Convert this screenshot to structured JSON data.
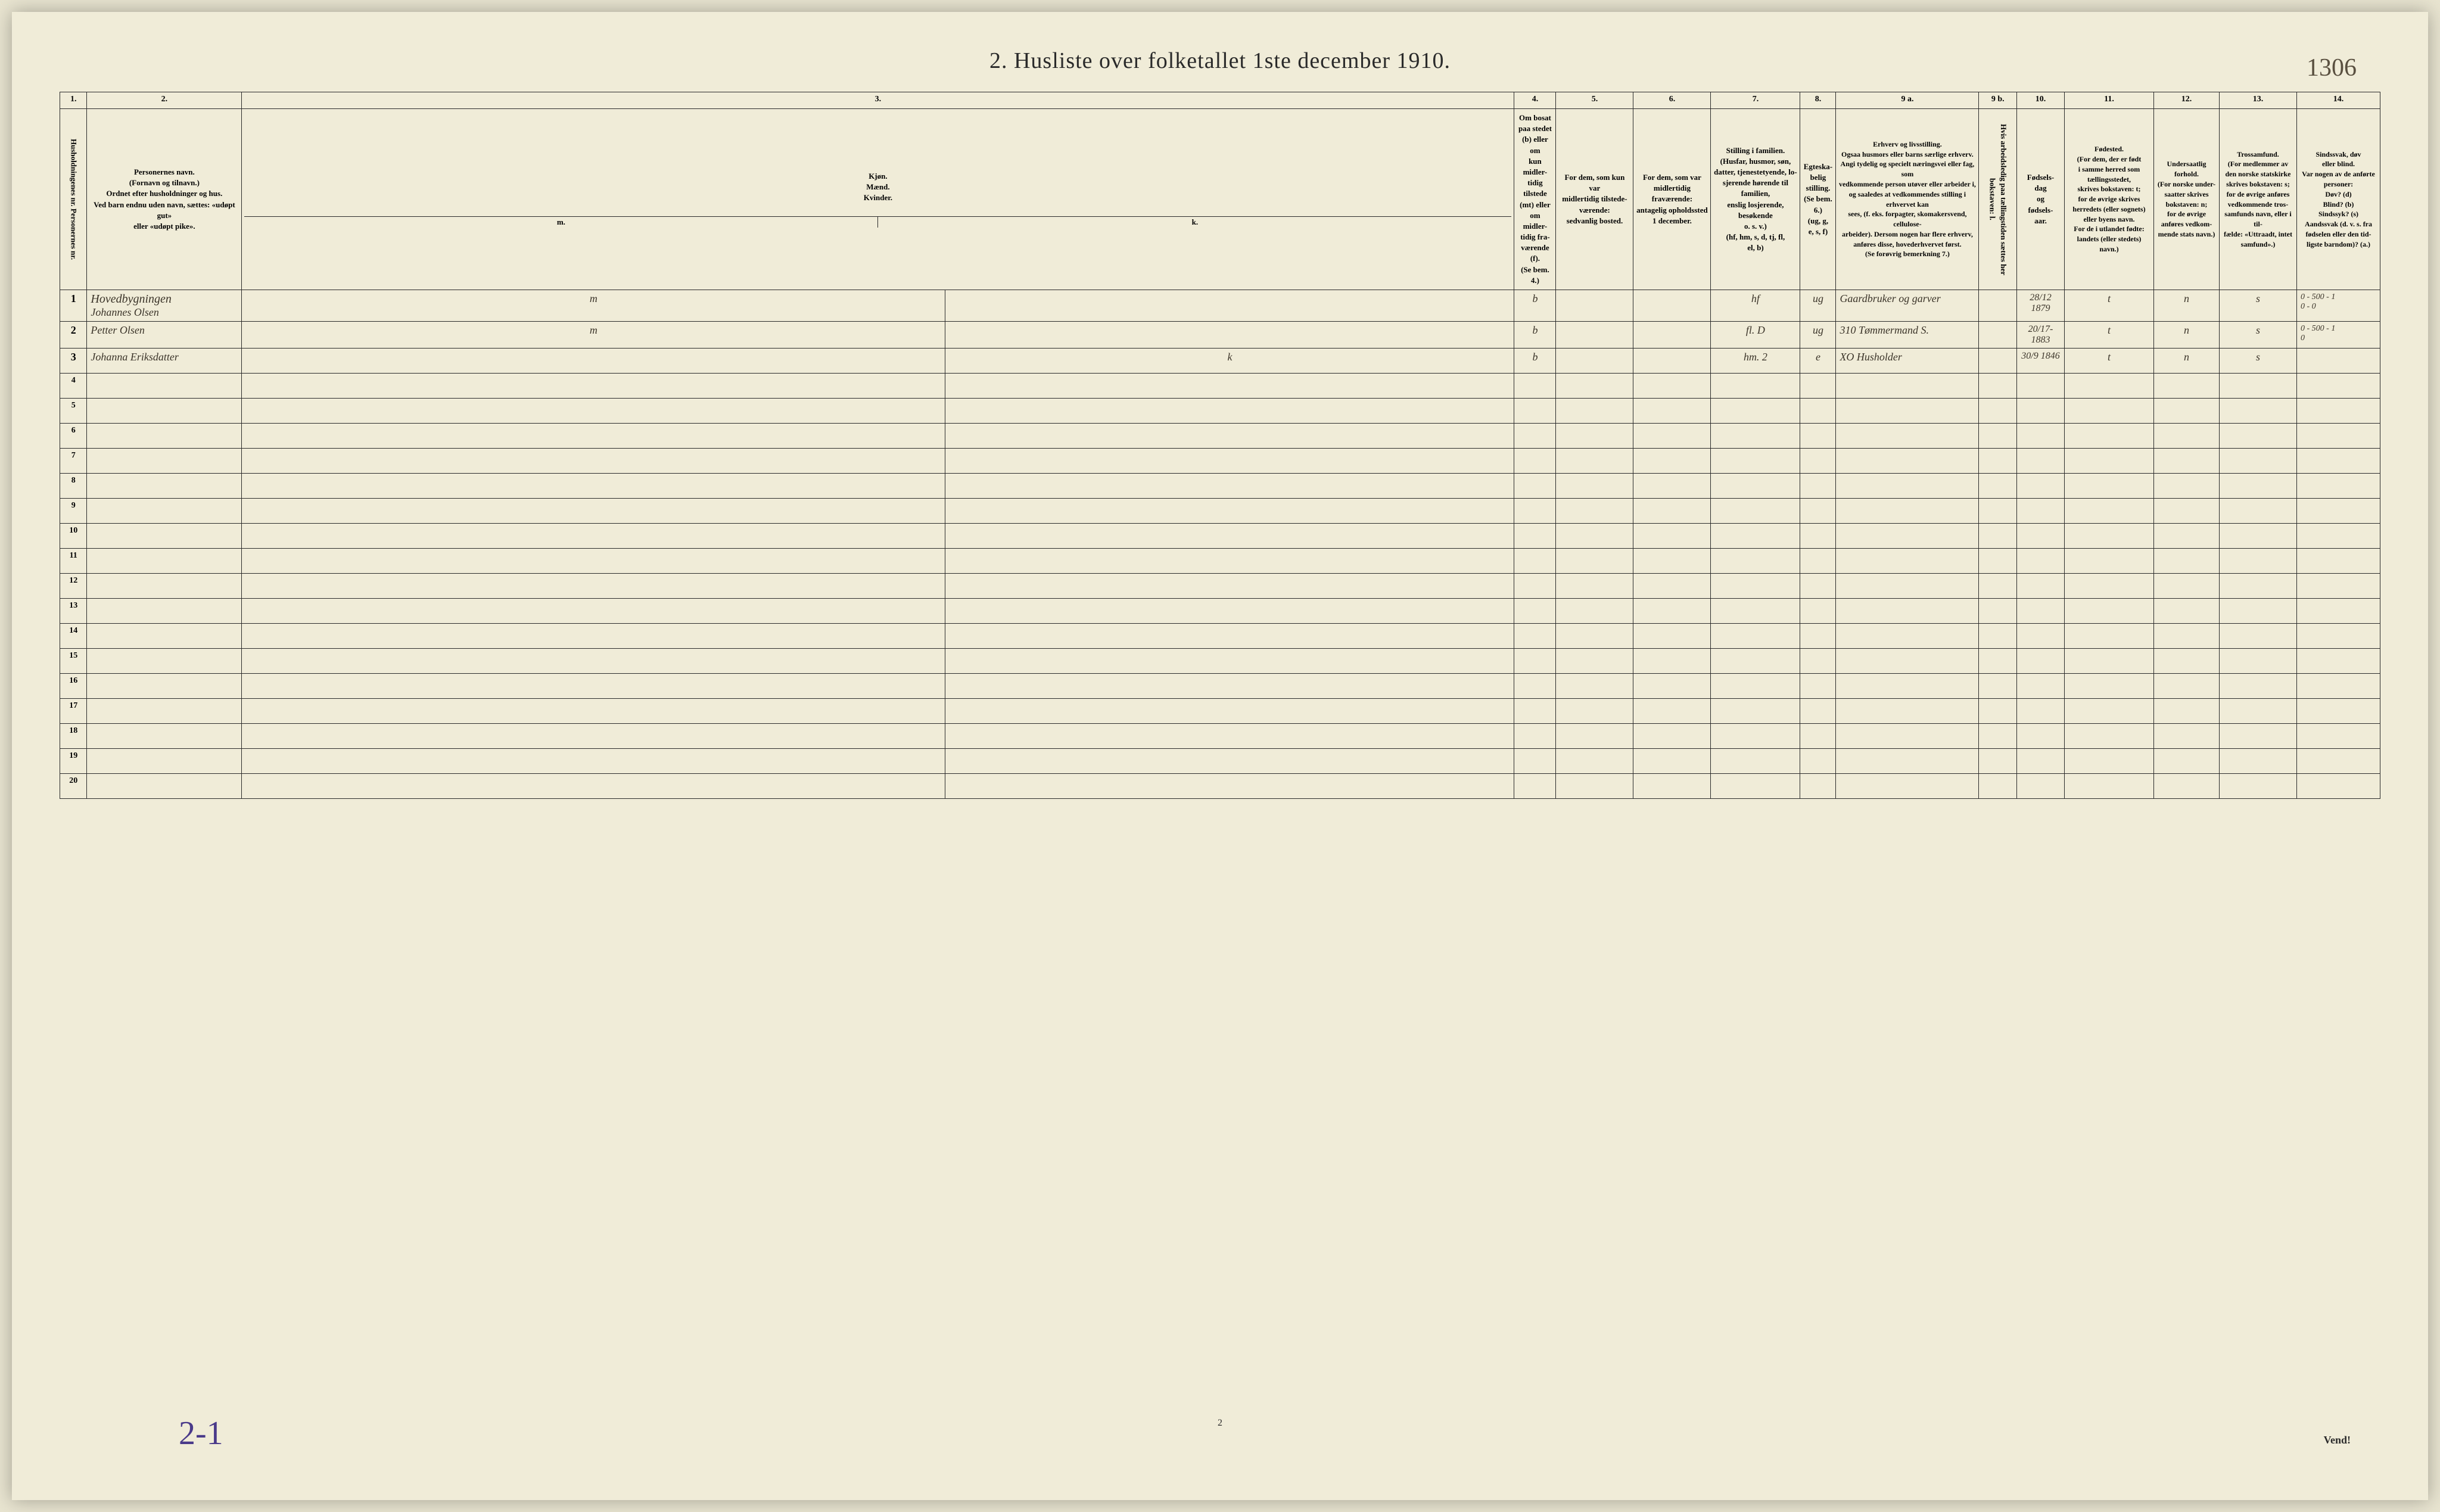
{
  "marginalia": "1306",
  "title": "2.  Husliste over folketallet 1ste december 1910.",
  "colNumbers": [
    "1.",
    "2.",
    "3.",
    "4.",
    "5.",
    "6.",
    "7.",
    "8.",
    "9 a.",
    "9 b.",
    "10.",
    "11.",
    "12.",
    "13.",
    "14."
  ],
  "headers": {
    "col1": "Husholdningenes nr.\nPersonernes nr.",
    "col2": "Personernes navn.\n(Fornavn og tilnavn.)\nOrdnet efter husholdninger og hus.\nVed barn endnu uden navn, sættes: «udøpt gut»\neller «udøpt pike».",
    "col3": "Kjøn.\nMænd.\nKvinder.",
    "col3a": "m.",
    "col3b": "k.",
    "col4": "Om bosat\npaa stedet\n(b) eller om\nkun midler-\ntidig tilstede\n(mt) eller\nom midler-\ntidig fra-\nværende (f).\n(Se bem. 4.)",
    "col5": "For dem, som kun var\nmidlertidig tilstede-\nværende:\nsedvanlig bosted.",
    "col6": "For dem, som var\nmidlertidig\nfraværende:\nantagelig opholdssted\n1 december.",
    "col7": "Stilling i familien.\n(Husfar, husmor, søn,\ndatter, tjenestetyende, lo-\nsjerende hørende til familien,\nenslig losjerende, besøkende\no. s. v.)\n(hf, hm, s, d, tj, fl,\nel, b)",
    "col8": "Egteska-\nbelig\nstilling.\n(Se bem. 6.)\n(ug, g,\ne, s, f)",
    "col9": "Erhverv og livsstilling.\nOgsaa husmors eller barns særlige erhverv.\nAngi tydelig og specielt næringsvei eller fag, som\nvedkommende person utøver eller arbeider i,\nog saaledes at vedkommendes stilling i erhvervet kan\nsees, (f. eks. forpagter, skomakersvend, cellulose-\narbeider). Dersom nogen har flere erhverv,\nanføres disse, hovederhvervet først.\n(Se forøvrig bemerkning 7.)",
    "col9b": "Hvis arbeidsledig\npaa tællingstiden sættes\nher bokstaven: l.",
    "col10": "Fødsels-\ndag\nog\nfødsels-\naar.",
    "col11": "Fødested.\n(For dem, der er født\ni samme herred som\ntællingsstedet,\nskrives bokstaven: t;\nfor de øvrige skrives\nherredets (eller sognets)\neller byens navn.\nFor de i utlandet fødte:\nlandets (eller stedets)\nnavn.)",
    "col12": "Undersaatlig\nforhold.\n(For norske under-\nsaatter skrives\nbokstaven: n;\nfor de øvrige\nanføres vedkom-\nmende stats navn.)",
    "col13": "Trossamfund.\n(For medlemmer av\nden norske statskirke\nskrives bokstaven: s;\nfor de øvrige anføres\nvedkommende tros-\nsamfunds navn, eller i til-\nfælde: «Uttraadt, intet\nsamfund».)",
    "col14": "Sindssvak, døv\neller blind.\nVar nogen av de anførte\npersoner:\nDøv?   (d)\nBlind?  (b)\nSindssyk?  (s)\nAandssvak (d. v. s. fra\nfødselen eller den tid-\nligste barndom)? (a.)"
  },
  "rows": [
    {
      "num": "1",
      "building": "Hovedbygningen",
      "name": "Johannes Olsen",
      "sex_m": "m",
      "sex_k": "",
      "bosat": "b",
      "col5": "",
      "col6": "",
      "stilling": "hf",
      "egte": "ug",
      "erhverv": "Gaardbruker og garver",
      "col9b": "",
      "fodsel": "28/12 1879",
      "fodested": "t",
      "undersaat": "n",
      "tros": "s",
      "col14": "0 - 500 - 1\n0 - 0"
    },
    {
      "num": "2",
      "name": "Petter Olsen",
      "sex_m": "m",
      "sex_k": "",
      "bosat": "b",
      "col5": "",
      "col6": "",
      "stilling": "fl. D",
      "egte": "ug",
      "erhverv": "310 Tømmermand S.",
      "col9b": "",
      "fodsel": "20/17-1883",
      "fodested": "t",
      "undersaat": "n",
      "tros": "s",
      "col14": "0 - 500 - 1\n0"
    },
    {
      "num": "3",
      "name": "Johanna Eriksdatter",
      "sex_m": "",
      "sex_k": "k",
      "bosat": "b",
      "col5": "",
      "col6": "",
      "stilling": "hm. 2",
      "egte": "e",
      "erhverv": "XO Husholder",
      "col9b": "",
      "fodsel": "30/9 1846",
      "fodested": "t",
      "undersaat": "n",
      "tros": "s",
      "col14": ""
    }
  ],
  "emptyRowNums": [
    "4",
    "5",
    "6",
    "7",
    "8",
    "9",
    "10",
    "11",
    "12",
    "13",
    "14",
    "15",
    "16",
    "17",
    "18",
    "19",
    "20"
  ],
  "bottomNote": "2-1",
  "pageNum": "2",
  "vend": "Vend!",
  "colors": {
    "paper": "#f0ecd8",
    "ink": "#2a2a2a",
    "handwriting": "#3a3328",
    "blueInk": "#4a3a8a"
  }
}
